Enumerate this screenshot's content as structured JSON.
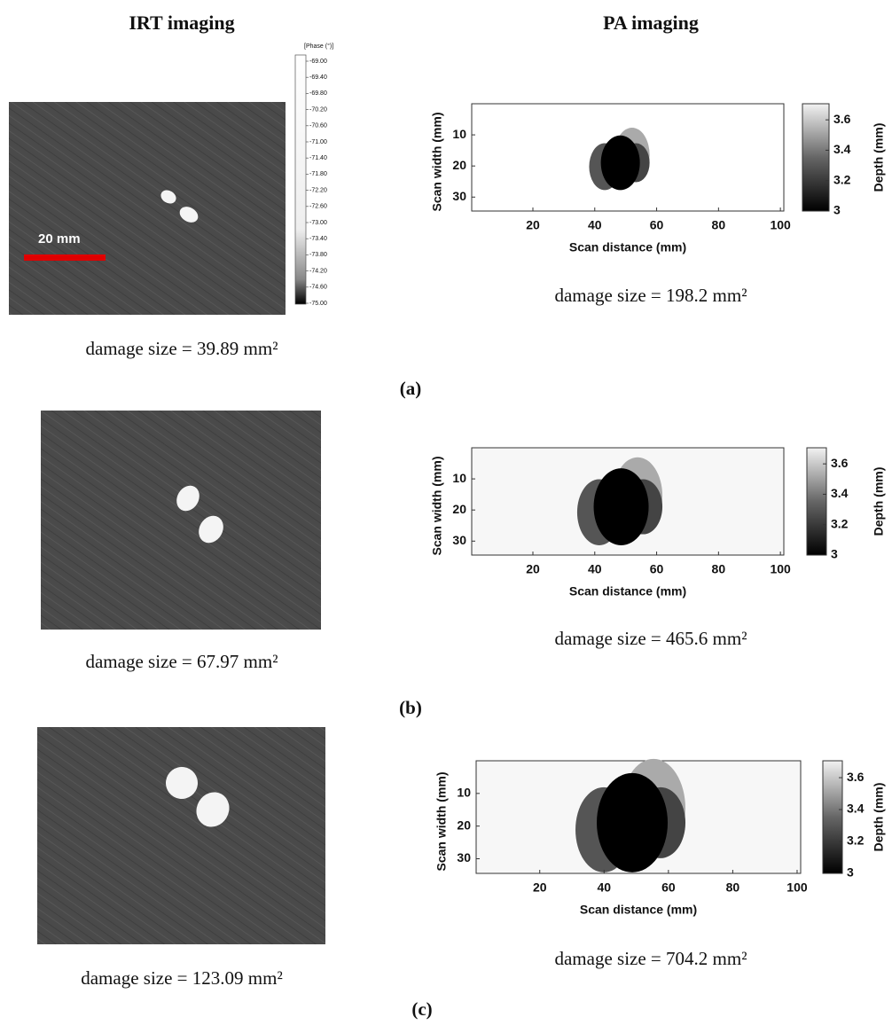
{
  "headers": {
    "irt": "IRT imaging",
    "pa": "PA imaging"
  },
  "scale_bar": "20 mm",
  "irt_colorbar": {
    "title": "[Phase (°)]",
    "ticks": [
      "-69.00",
      "-69.40",
      "-69.80",
      "-70.20",
      "-70.60",
      "-71.00",
      "-71.40",
      "-71.80",
      "-72.20",
      "-72.60",
      "-73.00",
      "-73.40",
      "-73.80",
      "-74.20",
      "-74.60",
      "-75.00"
    ]
  },
  "pa_axes": {
    "x_label": "Scan distance (mm)",
    "y_label": "Scan width (mm)",
    "colorbar_label": "Depth (mm)",
    "x_ticks": [
      20,
      40,
      60,
      80,
      100
    ],
    "y_ticks": [
      10,
      20,
      30
    ],
    "colorbar_ticks": [
      3,
      3.2,
      3.4,
      3.6
    ]
  },
  "panels": [
    {
      "label": "(a)",
      "irt_caption": "damage size = 39.89 mm²",
      "pa_caption": "damage size = 198.2 mm²"
    },
    {
      "label": "(b)",
      "irt_caption": "damage size = 67.97 mm²",
      "pa_caption": "damage size = 465.6 mm²"
    },
    {
      "label": "(c)",
      "irt_caption": "damage size = 123.09 mm²",
      "pa_caption": "damage size = 704.2 mm²"
    }
  ]
}
